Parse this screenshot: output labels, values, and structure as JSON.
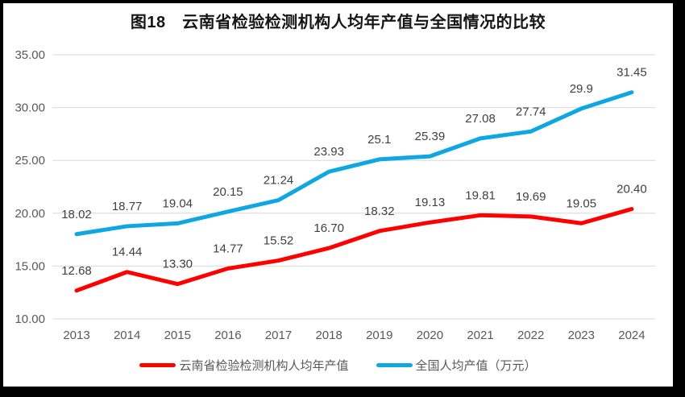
{
  "chart_data": {
    "type": "line",
    "title": "图18　云南省检验检测机构人均年产值与全国情况的比较",
    "categories": [
      "2013",
      "2014",
      "2015",
      "2016",
      "2017",
      "2018",
      "2019",
      "2020",
      "2021",
      "2022",
      "2023",
      "2024"
    ],
    "series": [
      {
        "name": "云南省检验检测机构人均年产值",
        "color": "#ff0000",
        "values": [
          12.68,
          14.44,
          13.3,
          14.77,
          15.52,
          16.7,
          18.32,
          19.13,
          19.81,
          19.69,
          19.05,
          20.4
        ],
        "labels": [
          "12.68",
          "14.44",
          "13.30",
          "14.77",
          "15.52",
          "16.70",
          "18.32",
          "19.13",
          "19.81",
          "19.69",
          "19.05",
          "20.40"
        ]
      },
      {
        "name": "全国人均产值（万元）",
        "color": "#0fa7e2",
        "values": [
          18.02,
          18.77,
          19.04,
          20.15,
          21.24,
          23.93,
          25.1,
          25.39,
          27.08,
          27.74,
          29.9,
          31.45
        ],
        "labels": [
          "18.02",
          "18.77",
          "19.04",
          "20.15",
          "21.24",
          "23.93",
          "25.1",
          "25.39",
          "27.08",
          "27.74",
          "29.9",
          "31.45"
        ]
      }
    ],
    "y_axis": {
      "ticks": [
        {
          "value": 35,
          "label": "35.00"
        },
        {
          "value": 30,
          "label": "30.00"
        },
        {
          "value": 25,
          "label": "25.00"
        },
        {
          "value": 20,
          "label": "20.00"
        },
        {
          "value": 15,
          "label": "15.00"
        },
        {
          "value": 10,
          "label": "10.00"
        }
      ],
      "min": 10,
      "max": 35
    },
    "grid": true,
    "legend_position": "bottom",
    "style": {
      "grid_color": "#d9d9d9",
      "axis_text_color": "#595959",
      "data_label_color": "#3f3f3f",
      "line_width": 5
    }
  }
}
